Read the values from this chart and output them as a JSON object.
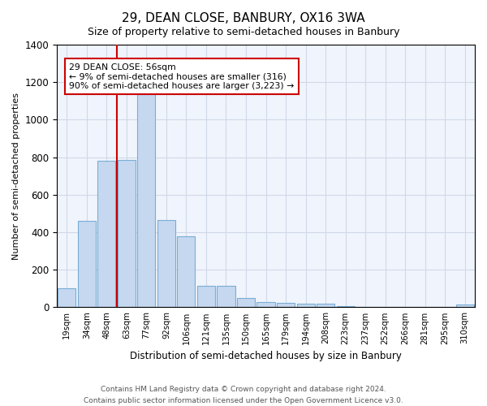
{
  "title1": "29, DEAN CLOSE, BANBURY, OX16 3WA",
  "title2": "Size of property relative to semi-detached houses in Banbury",
  "xlabel": "Distribution of semi-detached houses by size in Banbury",
  "ylabel": "Number of semi-detached properties",
  "categories": [
    "19sqm",
    "34sqm",
    "48sqm",
    "63sqm",
    "77sqm",
    "92sqm",
    "106sqm",
    "121sqm",
    "135sqm",
    "150sqm",
    "165sqm",
    "179sqm",
    "194sqm",
    "208sqm",
    "223sqm",
    "237sqm",
    "252sqm",
    "266sqm",
    "281sqm",
    "295sqm",
    "310sqm"
  ],
  "values": [
    100,
    460,
    780,
    785,
    1150,
    465,
    380,
    115,
    115,
    50,
    28,
    25,
    20,
    20,
    5,
    3,
    2,
    1,
    1,
    1,
    15
  ],
  "bar_color": "#c5d8f0",
  "bar_edge_color": "#7aadd4",
  "vline_color": "#cc0000",
  "vline_pos": 2.5,
  "annotation_text": "29 DEAN CLOSE: 56sqm\n← 9% of semi-detached houses are smaller (316)\n90% of semi-detached houses are larger (3,223) →",
  "ylim": [
    0,
    1400
  ],
  "footer1": "Contains HM Land Registry data © Crown copyright and database right 2024.",
  "footer2": "Contains public sector information licensed under the Open Government Licence v3.0.",
  "bg_color": "#ffffff",
  "plot_bg_color": "#f0f4fc",
  "grid_color": "#d0d8e8",
  "title1_fontsize": 11,
  "title2_fontsize": 9
}
